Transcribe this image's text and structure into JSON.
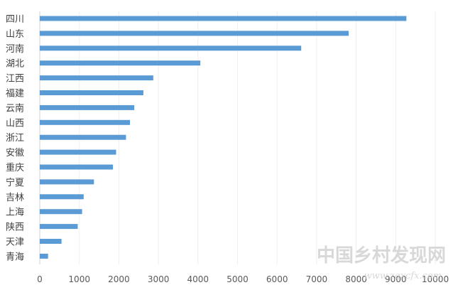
{
  "chart_data": {
    "type": "bar",
    "orientation": "horizontal",
    "categories": [
      "四川",
      "山东",
      "河南",
      "湖北",
      "江西",
      "福建",
      "云南",
      "山西",
      "浙江",
      "安徽",
      "重庆",
      "宁夏",
      "吉林",
      "上海",
      "陕西",
      "天津",
      "青海"
    ],
    "values": [
      9270,
      7810,
      6610,
      4060,
      2870,
      2620,
      2390,
      2280,
      2180,
      1930,
      1850,
      1370,
      1110,
      1070,
      960,
      550,
      210
    ],
    "xticks": [
      0,
      1000,
      2000,
      3000,
      4000,
      5000,
      6000,
      7000,
      8000,
      9000,
      10000
    ],
    "xlim": [
      0,
      10000
    ],
    "grid": true,
    "colors": {
      "bar": "#5b9bd5"
    }
  },
  "watermark": {
    "title": "中国乡村发现网",
    "url": "www.zgxcfx.com"
  }
}
